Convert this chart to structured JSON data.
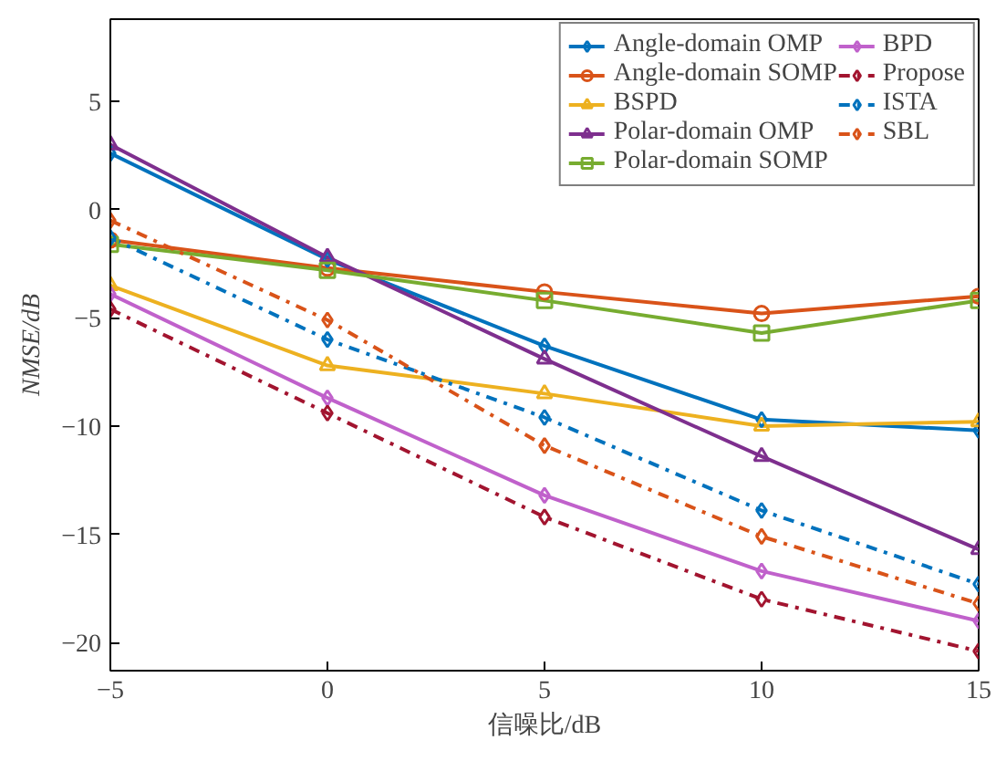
{
  "chart_data": {
    "type": "line",
    "xlabel": "信噪比/dB",
    "ylabel": "NMSE/dB",
    "x": [
      -5,
      0,
      5,
      10,
      15
    ],
    "xlim": [
      -5,
      15
    ],
    "xticks": [
      -5,
      0,
      5,
      10,
      15
    ],
    "ylim": [
      -21.3,
      8.8
    ],
    "yticks": [
      -20,
      -15,
      -10,
      -5,
      0,
      5
    ],
    "grid": false,
    "legend": "top right",
    "series": [
      {
        "name": "Angle-domain OMP",
        "color": "#0072bd",
        "marker": "diamond",
        "line_style": "solid",
        "values": [
          2.6,
          -2.3,
          -6.3,
          -9.7,
          -10.2
        ]
      },
      {
        "name": "Angle-domain SOMP",
        "color": "#d95319",
        "marker": "circle",
        "line_style": "solid",
        "values": [
          -1.4,
          -2.7,
          -3.8,
          -4.8,
          -4.0
        ]
      },
      {
        "name": "BSPD",
        "color": "#edb120",
        "marker": "triangle",
        "line_style": "solid",
        "values": [
          -3.5,
          -7.2,
          -8.5,
          -10.0,
          -9.8
        ]
      },
      {
        "name": "Polar-domain OMP",
        "color": "#7e2f8e",
        "marker": "triangle",
        "line_style": "solid",
        "values": [
          3.0,
          -2.2,
          -6.9,
          -11.4,
          -15.7
        ]
      },
      {
        "name": "Polar-domain SOMP",
        "color": "#77ac30",
        "marker": "square",
        "line_style": "solid",
        "values": [
          -1.6,
          -2.8,
          -4.2,
          -5.7,
          -4.2
        ]
      },
      {
        "name": "BPD",
        "color": "#c061cb",
        "marker": "diamond",
        "line_style": "solid",
        "values": [
          -3.9,
          -8.7,
          -13.2,
          -16.7,
          -19.0
        ]
      },
      {
        "name": "Propose",
        "color": "#a2142f",
        "marker": "diamond",
        "line_style": "dashdot",
        "values": [
          -4.6,
          -9.4,
          -14.2,
          -18.0,
          -20.4
        ]
      },
      {
        "name": "ISTA",
        "color": "#0072bd",
        "marker": "diamond",
        "line_style": "dashdot",
        "values": [
          -1.3,
          -6.0,
          -9.6,
          -13.9,
          -17.3
        ]
      },
      {
        "name": "SBL",
        "color": "#d95319",
        "marker": "diamond",
        "line_style": "dashdot",
        "values": [
          -0.5,
          -5.1,
          -10.9,
          -15.1,
          -18.2
        ]
      }
    ]
  }
}
